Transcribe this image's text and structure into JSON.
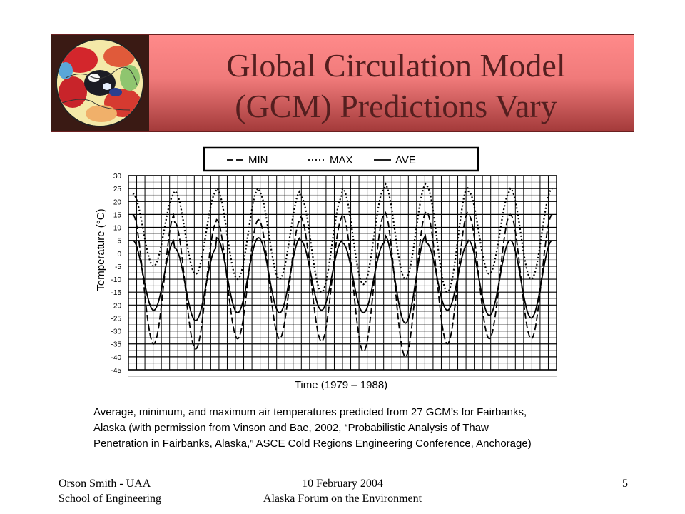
{
  "title": {
    "line1": "Global Circulation Model",
    "line2": "(GCM) Predictions Vary"
  },
  "logo": {
    "description": "arctic-globe-temperature-map",
    "colors": [
      "#c8242a",
      "#f5e9a0",
      "#2b3f8f",
      "#6fb36a"
    ]
  },
  "chart_data": {
    "type": "line",
    "xlabel": "Time (1979 – 1988)",
    "ylabel": "Temperature (°C)",
    "ylim": [
      -45,
      30
    ],
    "yticks": [
      "30",
      "25",
      "20",
      "15",
      "10",
      "5",
      "0",
      "-5",
      "-10",
      "-15",
      "-20",
      "-25",
      "-30",
      "-35",
      "-40",
      "-45"
    ],
    "grid": true,
    "legend_position": "top",
    "legend": [
      {
        "style": "dash",
        "label": "MIN"
      },
      {
        "style": "dot",
        "label": "MAX"
      },
      {
        "style": "solid",
        "label": "AVE"
      }
    ],
    "cycles": 10,
    "series": [
      {
        "name": "MIN",
        "style": "dash",
        "lows": [
          -35,
          -37,
          -33,
          -33,
          -34,
          -38,
          -40,
          -35,
          -33,
          -33
        ],
        "highs": [
          15,
          12,
          13,
          13,
          14,
          15,
          16,
          16,
          15,
          15
        ]
      },
      {
        "name": "MAX",
        "style": "dot",
        "lows": [
          -5,
          -8,
          -10,
          -10,
          -15,
          -12,
          -10,
          -15,
          -8,
          -10
        ],
        "highs": [
          23,
          24,
          25,
          24,
          22,
          25,
          27,
          26,
          24,
          25
        ]
      },
      {
        "name": "AVE",
        "style": "solid",
        "lows": [
          -22,
          -26,
          -23,
          -23,
          -22,
          -23,
          -27,
          -22,
          -24,
          -25
        ],
        "highs": [
          5,
          2,
          6,
          6,
          5,
          4,
          7,
          4,
          5,
          5
        ]
      }
    ]
  },
  "caption": {
    "line1": "Average, minimum, and maximum air temperatures predicted from 27 GCM’s for Fairbanks,",
    "line2": "Alaska (with permission from Vinson and Bae, 2002, “Probabilistic Analysis of Thaw",
    "line3": "Penetration in Fairbanks, Alaska,” ASCE Cold Regions Engineering Conference, Anchorage)"
  },
  "footer": {
    "left_line1": "Orson Smith - UAA",
    "left_line2": "School of Engineering",
    "center_line1": "10 February 2004",
    "center_line2": "Alaska Forum on the Environment",
    "page_number": "5"
  }
}
